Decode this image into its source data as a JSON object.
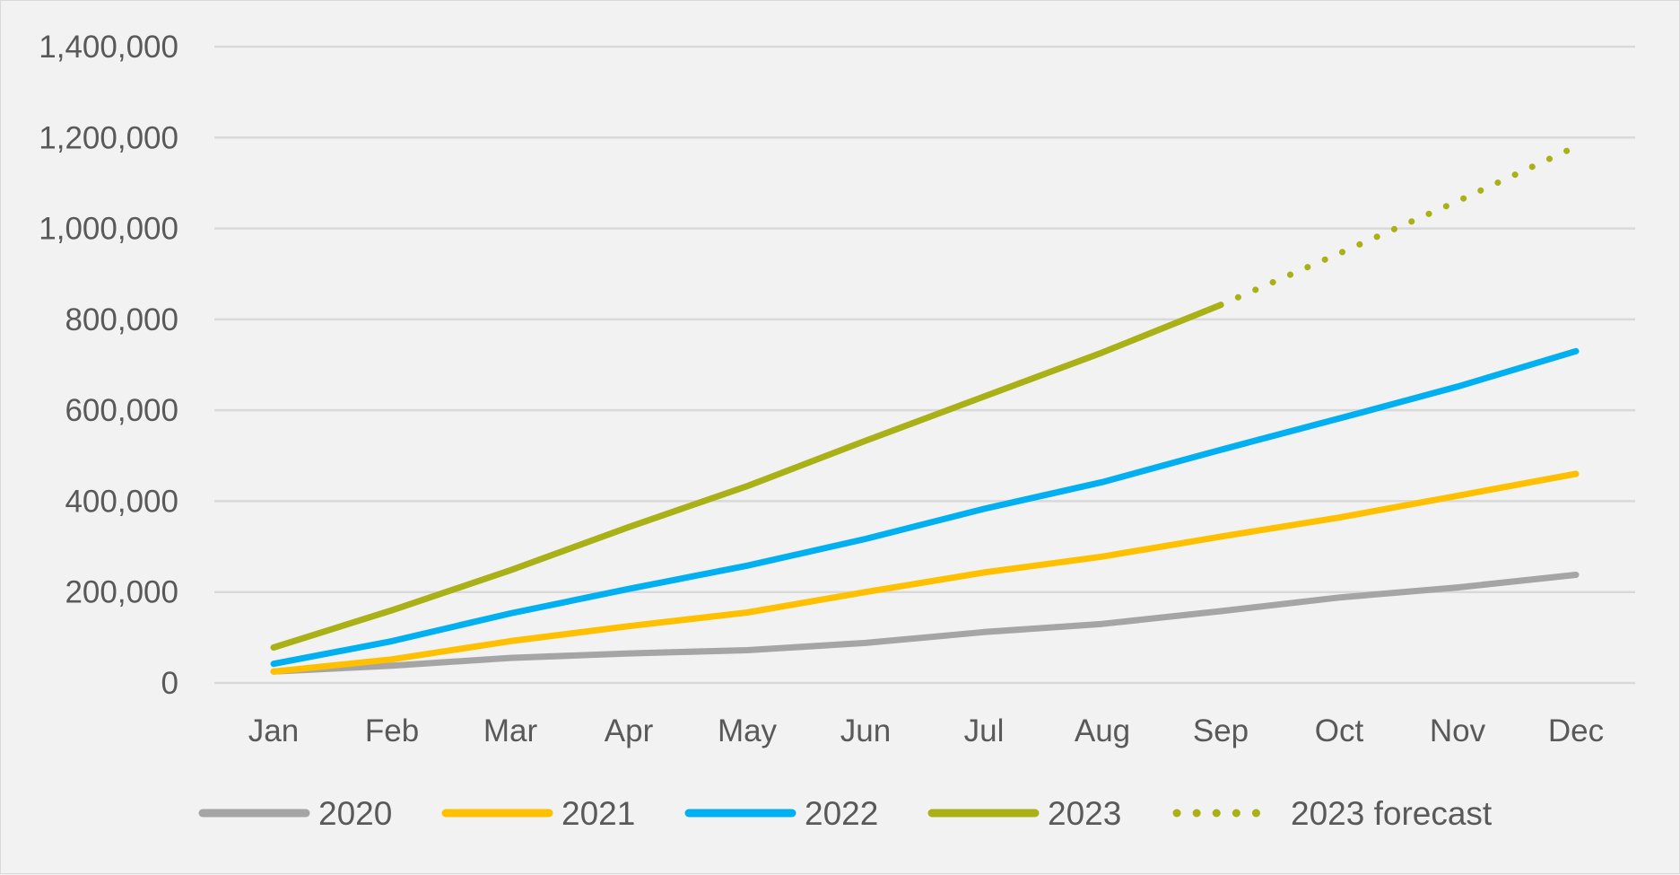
{
  "chart_data": {
    "type": "line",
    "title": "",
    "xlabel": "",
    "ylabel": "",
    "categories": [
      "Jan",
      "Feb",
      "Mar",
      "Apr",
      "May",
      "Jun",
      "Jul",
      "Aug",
      "Sep",
      "Oct",
      "Nov",
      "Dec"
    ],
    "ylim": [
      0,
      1400000
    ],
    "yticks": [
      0,
      200000,
      400000,
      600000,
      800000,
      1000000,
      1200000,
      1400000
    ],
    "ytick_labels": [
      "0",
      "200,000",
      "400,000",
      "600,000",
      "800,000",
      "1,000,000",
      "1,200,000",
      "1,400,000"
    ],
    "grid": "horizontal",
    "legend_position": "bottom",
    "series": [
      {
        "name": "2020",
        "color": "#a5a5a5",
        "style": "solid",
        "values": [
          25000,
          38000,
          55000,
          65000,
          72000,
          88000,
          112000,
          130000,
          158000,
          188000,
          210000,
          238000
        ]
      },
      {
        "name": "2021",
        "color": "#ffc000",
        "style": "solid",
        "values": [
          25000,
          52000,
          92000,
          125000,
          155000,
          200000,
          243000,
          278000,
          322000,
          364000,
          412000,
          460000
        ]
      },
      {
        "name": "2022",
        "color": "#00b0f0",
        "style": "solid",
        "values": [
          42000,
          92000,
          153000,
          207000,
          258000,
          317000,
          383000,
          442000,
          513000,
          582000,
          652000,
          730000
        ]
      },
      {
        "name": "2023",
        "color": "#a9b116",
        "style": "solid",
        "values": [
          78000,
          160000,
          248000,
          343000,
          433000,
          533000,
          630000,
          727000,
          832000,
          null,
          null,
          null
        ]
      },
      {
        "name": "2023 forecast",
        "color": "#a9b116",
        "style": "dotted",
        "values": [
          null,
          null,
          null,
          null,
          null,
          null,
          null,
          null,
          832000,
          945000,
          1060000,
          1180000
        ]
      }
    ]
  }
}
